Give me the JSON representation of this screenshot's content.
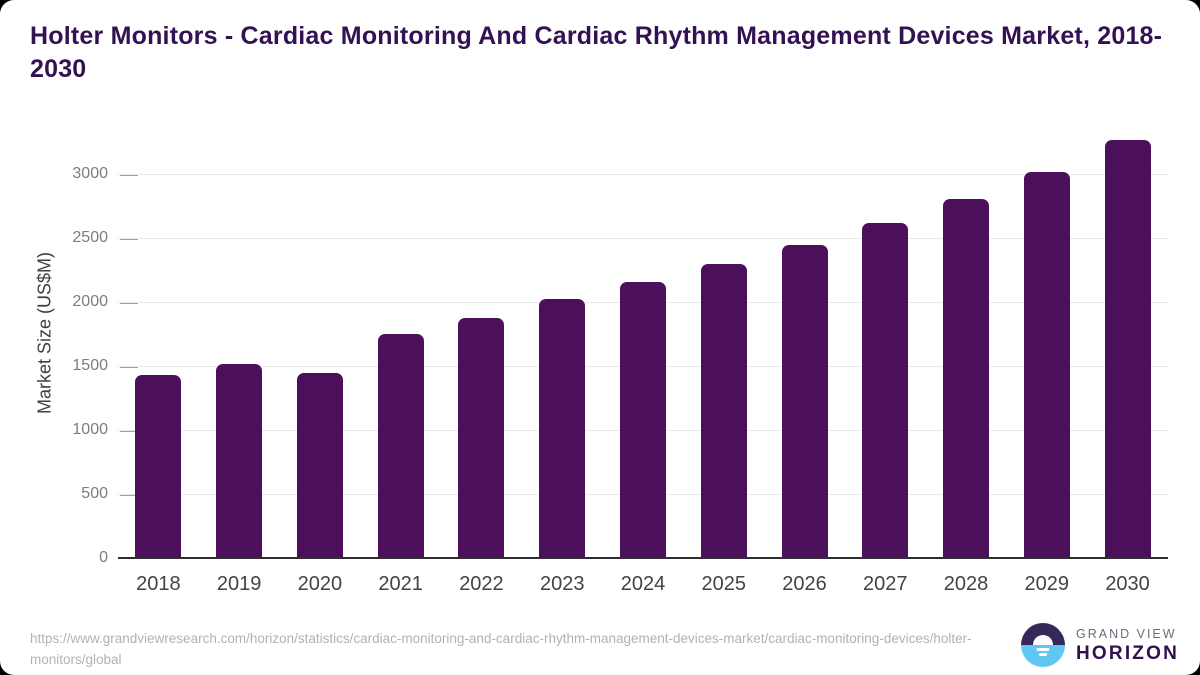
{
  "title": "Holter Monitors - Cardiac Monitoring And Cardiac Rhythm Management Devices Market, 2018-2030",
  "chart_data": {
    "type": "bar",
    "title": "Holter Monitors - Cardiac Monitoring And Cardiac Rhythm Management Devices Market, 2018-2030",
    "categories": [
      "2018",
      "2019",
      "2020",
      "2021",
      "2022",
      "2023",
      "2024",
      "2025",
      "2026",
      "2027",
      "2028",
      "2029",
      "2030"
    ],
    "values": [
      1430,
      1520,
      1445,
      1750,
      1875,
      2025,
      2155,
      2295,
      2450,
      2620,
      2805,
      3020,
      3265
    ],
    "xlabel": "",
    "ylabel": "Market Size (US$M)",
    "ylim": [
      0,
      3330
    ],
    "yticks": [
      0,
      500,
      1000,
      1500,
      2000,
      2500,
      3000
    ],
    "grid": true,
    "legend": false,
    "bar_color": "#4b1059"
  },
  "colors": {
    "bar": "#4b1059",
    "title": "#331153",
    "gridline": "#e9e9e9",
    "axis_line": "#2f2f2f",
    "y_tick_text": "#7d7d7d",
    "x_tick_text": "#434343",
    "url_text": "#b2b2b2",
    "logo_navy": "#37285a",
    "logo_blue": "#5ec8f3",
    "logo_purple_text": "#2f1050"
  },
  "footer": {
    "source_url": "https://www.grandviewresearch.com/horizon/statistics/cardiac-monitoring-and-cardiac-rhythm-management-devices-market/cardiac-monitoring-devices/holter-monitors/global",
    "logo": {
      "top": "GRAND VIEW",
      "bottom": "HORIZON"
    }
  }
}
